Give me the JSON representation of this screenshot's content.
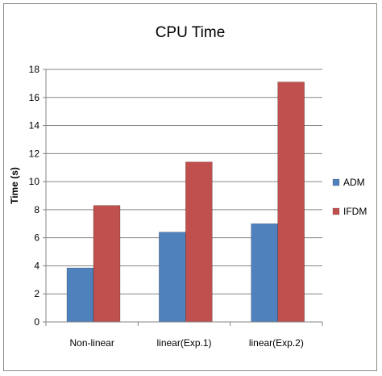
{
  "chart_data": {
    "type": "bar",
    "title": "CPU Time",
    "xlabel": "",
    "ylabel": "Time (s)",
    "categories": [
      "Non-linear",
      "linear(Exp.1)",
      "linear(Exp.2)"
    ],
    "series": [
      {
        "name": "ADM",
        "values": [
          3.85,
          6.4,
          7.0
        ],
        "color": "#4f81bd"
      },
      {
        "name": "IFDM",
        "values": [
          8.3,
          11.4,
          17.1
        ],
        "color": "#c0504d"
      }
    ],
    "ylim": [
      0,
      18
    ],
    "yticks": [
      "0",
      "2",
      "4",
      "6",
      "8",
      "10",
      "12",
      "14",
      "16",
      "18"
    ],
    "grid": true,
    "legend_position": "right"
  }
}
